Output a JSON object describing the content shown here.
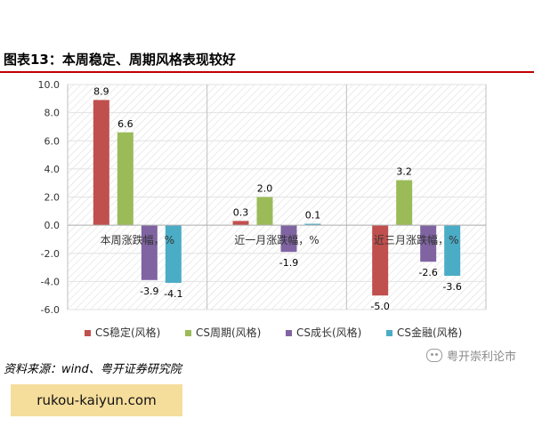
{
  "page": {
    "title": "图表13：本周稳定、周期风格表现较好",
    "source": "资料来源：wind、粤开证券研究院",
    "watermark": "粤开崇利论市",
    "badge": "rukou-kaiyun.com"
  },
  "chart_data": {
    "type": "bar",
    "title": "",
    "xlabel": "",
    "ylabel": "",
    "categories": [
      "本周涨跌幅，%",
      "近一月涨跌幅，%",
      "近三月涨跌幅，%"
    ],
    "ylim": [
      -6.0,
      10.0
    ],
    "y_ticks": [
      "10.0",
      "8.0",
      "6.0",
      "4.0",
      "2.0",
      "0.0",
      "-2.0",
      "-4.0",
      "-6.0"
    ],
    "grid": "hatched-background",
    "legend_position": "bottom",
    "series": [
      {
        "name": "CS稳定(风格)",
        "color": "#c0504d",
        "values": [
          8.9,
          0.3,
          -5.0
        ],
        "labels": [
          "8.9",
          "0.3",
          "-5.0"
        ]
      },
      {
        "name": "CS周期(风格)",
        "color": "#9bbb59",
        "values": [
          6.6,
          2.0,
          3.2
        ],
        "labels": [
          "6.6",
          "2.0",
          "3.2"
        ]
      },
      {
        "name": "CS成长(风格)",
        "color": "#8064a2",
        "values": [
          -3.9,
          -1.9,
          -2.6
        ],
        "labels": [
          "-3.9",
          "-1.9",
          "-2.6"
        ]
      },
      {
        "name": "CS金融(风格)",
        "color": "#4bacc6",
        "values": [
          -4.1,
          0.1,
          -3.6
        ],
        "labels": [
          "-4.1",
          "0.1",
          "-3.6"
        ]
      }
    ]
  }
}
